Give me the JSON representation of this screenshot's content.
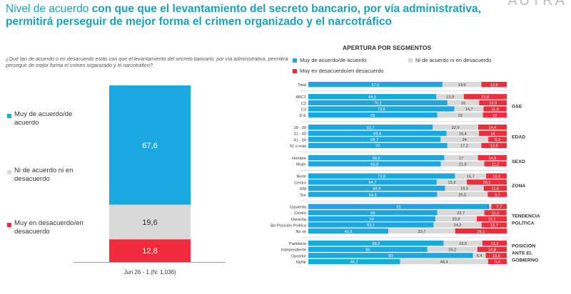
{
  "header": {
    "title_normal": "Nivel de acuerdo ",
    "title_bold": "con que que el levantamiento del secreto bancario, por vía administrativa, permitirá perseguir de mejor forma el crimen organizado y el narcotráfico",
    "logo": "AUTRA"
  },
  "question": "¿Qué tan de acuerdo o en desacuerdo estás con que el levantamiento del secreto bancario, por vía administrativa, permitirá perseguir de mejor forma el crimen organizado y el narcotráfico?",
  "colors": {
    "agree": "#1ba8e0",
    "neutral": "#d9d9d9",
    "disagree": "#f02b3c",
    "title": "#1aa3b8"
  },
  "chart_data": [
    {
      "type": "bar",
      "stacked": true,
      "categories": [
        "Jun 26 - 1 (N: 1.036)"
      ],
      "series": [
        {
          "name": "Muy de acuerdo/de acuerdo",
          "values": [
            67.6
          ]
        },
        {
          "name": "Ni de acuerdo ni en desacuerdo",
          "values": [
            19.6
          ]
        },
        {
          "name": "Muy en desacuerdo/en desacuerdo",
          "values": [
            12.8
          ]
        }
      ],
      "legend_labels": [
        "Muy de acuerdo/de acuerdo",
        "Ni de acuerdo ni en desacuerdo",
        "Muy en desacuerdo/en desacuerdo"
      ],
      "ylim": [
        0,
        100
      ]
    },
    {
      "type": "bar",
      "orientation": "horizontal",
      "stacked": true,
      "title": "APERTURA POR SEGMENTOS",
      "legend": [
        "Muy de acuerdo/de acuerdo",
        "Ni de acuerdo ni en desacuerdo",
        "Muy en desacuerdo/en desacuerdo"
      ],
      "groups": [
        {
          "label": "",
          "rows": [
            {
              "label": "Total",
              "values": [
                67.6,
                19.6,
                12.8
              ]
            }
          ]
        },
        {
          "label": "GSE",
          "rows": [
            {
              "label": "ABC1",
              "values": [
                64.5,
                13.9,
                21.6
              ]
            },
            {
              "label": "C2",
              "values": [
                70.1,
                16,
                13.9
              ]
            },
            {
              "label": "C3",
              "values": [
                73.6,
                14.7,
                11.6
              ]
            },
            {
              "label": "D-E",
              "values": [
                65,
                23,
                12
              ]
            }
          ]
        },
        {
          "label": "EDAD",
          "rows": [
            {
              "label": "18 - 30",
              "values": [
                62.7,
                22.9,
                14.4
              ]
            },
            {
              "label": "31 - 40",
              "values": [
                69.6,
                16.4,
                14
              ]
            },
            {
              "label": "41 - 50",
              "values": [
                66.7,
                24,
                9.3
              ]
            },
            {
              "label": "51 o más",
              "values": [
                70,
                17.2,
                12.8
              ]
            }
          ]
        },
        {
          "label": "SEXO",
          "rows": [
            {
              "label": "Hombre",
              "values": [
                68.5,
                17,
                14.5
              ]
            },
            {
              "label": "Mujer",
              "values": [
                66.8,
                21.9,
                11.2
              ]
            }
          ]
        },
        {
          "label": "ZONA",
          "rows": [
            {
              "label": "Norte",
              "values": [
                73.9,
                15.7,
                10.4
              ]
            },
            {
              "label": "Centro",
              "values": [
                64.7,
                15.2,
                20.1
              ]
            },
            {
              "label": "RM",
              "values": [
                68.9,
                19.5,
                11.6
              ]
            },
            {
              "label": "Sur",
              "values": [
                64.9,
                25.5,
                9.7
              ]
            }
          ]
        },
        {
          "label": "TENDENCIA POLÍTICA",
          "rows": [
            {
              "label": "Izquierda",
              "values": [
                91,
                1.3,
                7.7
              ],
              "labels": [
                "91",
                "1,3",
                "7,7"
              ]
            },
            {
              "label": "Centro",
              "values": [
                65,
                23.7,
                11.2
              ]
            },
            {
              "label": "Derecha",
              "values": [
                64,
                20.9,
                15.1
              ]
            },
            {
              "label": "Sin Posición Política",
              "values": [
                63.1,
                24.2,
                12.7
              ]
            },
            {
              "label": "No sé",
              "values": [
                40.3,
                33.7,
                26.1
              ]
            }
          ]
        },
        {
          "label": "POSICIÓN ANTE EL GOBIERNO",
          "rows": [
            {
              "label": "Partidario",
              "values": [
                68.2,
                19.5,
                12.3
              ]
            },
            {
              "label": "Independiente",
              "values": [
                60,
                25.2,
                14.8
              ]
            },
            {
              "label": "Opositor",
              "values": [
                83,
                6.4,
                10.6
              ]
            },
            {
              "label": "Ns/Nr",
              "values": [
                46.2,
                44.4,
                9.4
              ]
            }
          ]
        }
      ]
    }
  ]
}
